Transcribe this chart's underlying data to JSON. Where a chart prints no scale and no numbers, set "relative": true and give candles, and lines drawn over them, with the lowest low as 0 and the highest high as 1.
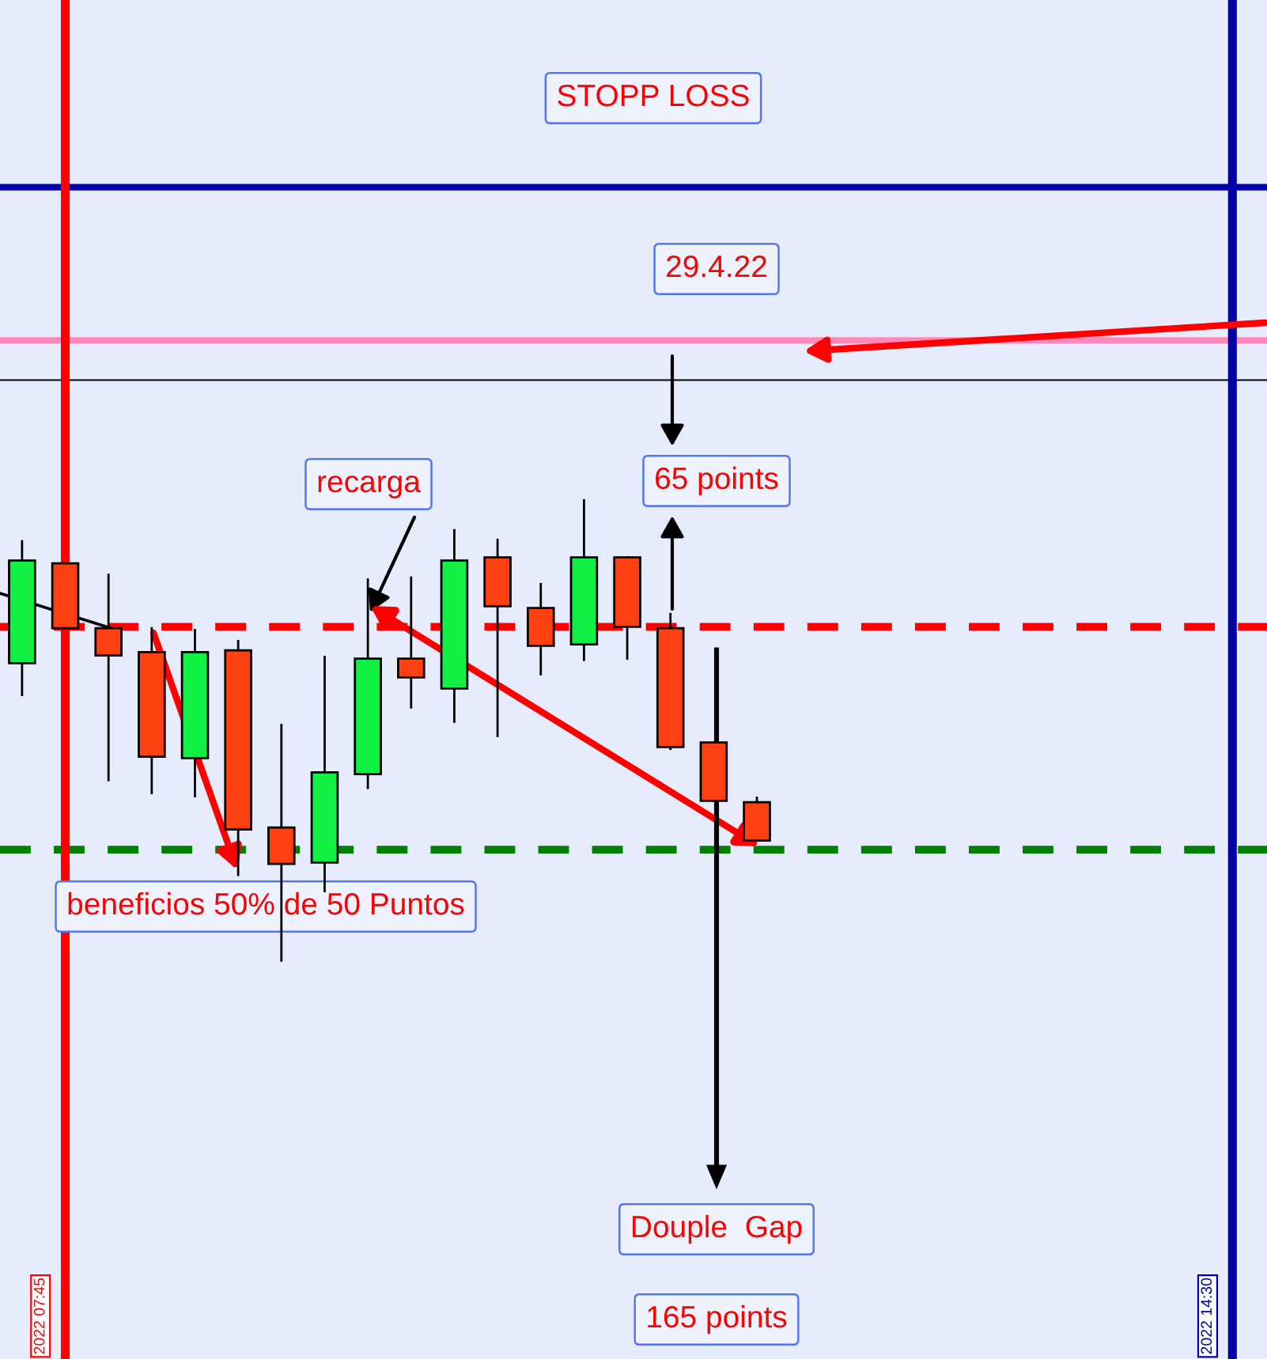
{
  "chart_data": {
    "type": "candlestick",
    "relative": true,
    "categories": [
      null,
      null,
      null,
      null,
      null,
      null,
      null,
      null,
      null,
      null,
      null,
      null,
      null,
      null,
      null,
      null,
      null,
      null
    ],
    "ohlc": [
      [
        0.646,
        0.911,
        0.577,
        0.869
      ],
      [
        0.863,
        0.863,
        0.722,
        0.722
      ],
      [
        0.722,
        0.838,
        0.392,
        0.663
      ],
      [
        0.67,
        0.722,
        0.364,
        0.443
      ],
      [
        0.44,
        0.718,
        0.357,
        0.67
      ],
      [
        0.674,
        0.694,
        0.186,
        0.285
      ],
      [
        0.289,
        0.512,
        0.0,
        0.21
      ],
      [
        0.213,
        0.66,
        0.151,
        0.409
      ],
      [
        0.405,
        0.828,
        0.375,
        0.656
      ],
      [
        0.656,
        0.832,
        0.55,
        0.615
      ],
      [
        0.591,
        0.935,
        0.519,
        0.869
      ],
      [
        0.876,
        0.914,
        0.488,
        0.77
      ],
      [
        0.766,
        0.818,
        0.622,
        0.684
      ],
      [
        0.687,
        1.0,
        0.653,
        0.876
      ],
      [
        0.876,
        0.876,
        0.656,
        0.725
      ],
      [
        0.722,
        0.753,
        0.46,
        0.464
      ],
      [
        0.474,
        0.474,
        0.347,
        0.347
      ],
      [
        0.344,
        0.354,
        0.261,
        0.261
      ]
    ],
    "colors": [
      "#11ee44",
      "#ff4010",
      "#ff4010",
      "#ff4010",
      "#11ee44",
      "#ff4010",
      "#ff4010",
      "#11ee44",
      "#11ee44",
      "#ff4010",
      "#11ee44",
      "#ff4010",
      "#ff4010",
      "#11ee44",
      "#ff4010",
      "#ff4010",
      "#ff4010",
      "#ff4010"
    ],
    "ref_lines": [
      {
        "axis": "y",
        "value": 1.68,
        "label": null,
        "color": "#0000aa",
        "line_style": "solid"
      },
      {
        "axis": "y",
        "value": 1.347,
        "label": null,
        "color": "#ff88bb",
        "line_style": "solid"
      },
      {
        "axis": "y",
        "value": 1.261,
        "label": null,
        "color": "#000000",
        "line_style": "solid"
      },
      {
        "axis": "y",
        "value": 0.725,
        "label": null,
        "color": "#ff0000",
        "line_style": "dashed"
      },
      {
        "axis": "y",
        "value": 0.241,
        "label": null,
        "color": "#008000",
        "line_style": "dashed"
      }
    ],
    "annotations": [
      "STOPP LOSS",
      "29.4.22",
      "recarga",
      "65 points",
      "beneficios 50% de 50 Puntos",
      "Douple  Gap",
      "165 points",
      "2022 07:45",
      "2022 14:30"
    ]
  }
}
